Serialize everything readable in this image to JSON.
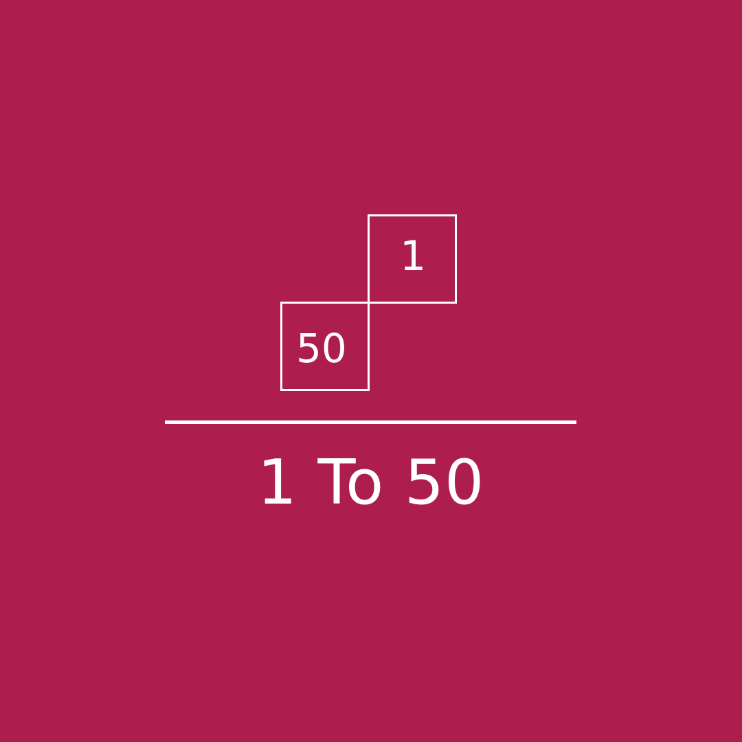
{
  "logo": {
    "tiles": {
      "first": "1",
      "last": "50"
    }
  },
  "title": "1 To 50",
  "colors": {
    "background": "#AD1D4E",
    "foreground": "#FFFFFF"
  }
}
